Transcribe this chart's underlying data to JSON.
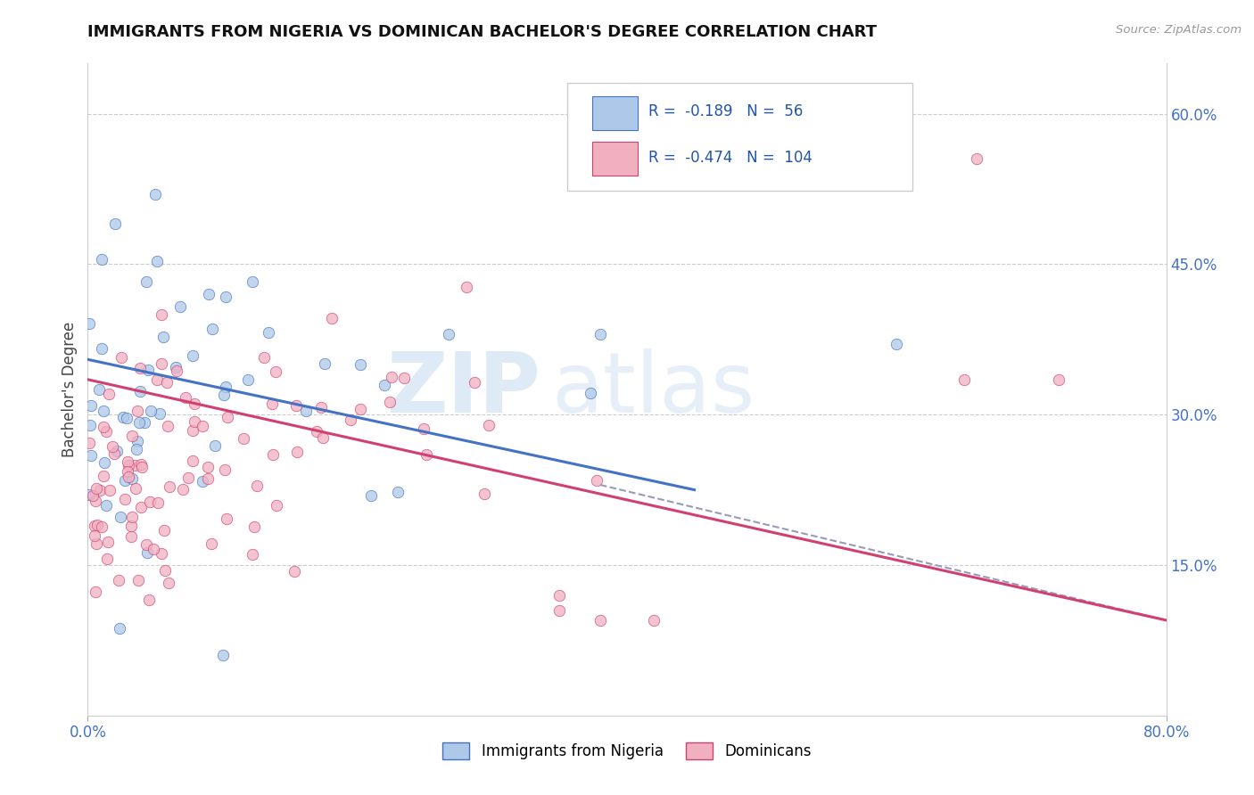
{
  "title": "IMMIGRANTS FROM NIGERIA VS DOMINICAN BACHELOR'S DEGREE CORRELATION CHART",
  "source": "Source: ZipAtlas.com",
  "ylabel": "Bachelor's Degree",
  "right_yticks": [
    "15.0%",
    "30.0%",
    "45.0%",
    "60.0%"
  ],
  "right_ytick_vals": [
    0.15,
    0.3,
    0.45,
    0.6
  ],
  "legend_labels": [
    "Immigrants from Nigeria",
    "Dominicans"
  ],
  "r_nigeria": -0.189,
  "n_nigeria": 56,
  "r_dominican": -0.474,
  "n_dominican": 104,
  "color_nigeria": "#adc8e8",
  "color_dominican": "#f0b0c0",
  "color_nigeria_line": "#4472c4",
  "color_dominican_line": "#d04070",
  "color_dashed": "#9999bb",
  "nig_line_x0": 0.0,
  "nig_line_y0": 0.355,
  "nig_line_x1": 0.45,
  "nig_line_y1": 0.225,
  "dom_line_x0": 0.0,
  "dom_line_y0": 0.335,
  "dom_line_x1": 0.8,
  "dom_line_y1": 0.095,
  "dash_line_x0": 0.38,
  "dash_line_y0": 0.23,
  "dash_line_x1": 0.8,
  "dash_line_y1": 0.095,
  "watermark_zip": "ZIP",
  "watermark_atlas": "atlas",
  "xlim": [
    0.0,
    0.8
  ],
  "ylim": [
    0.0,
    0.65
  ],
  "grid_lines": [
    0.15,
    0.3,
    0.45,
    0.6
  ]
}
